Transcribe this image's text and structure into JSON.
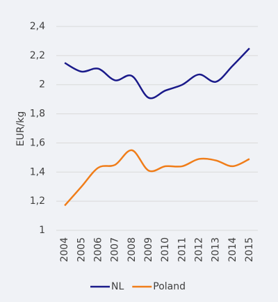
{
  "chart_data": {
    "type": "line",
    "y_label": "EUR/kg",
    "categories": [
      "2004",
      "2005",
      "2006",
      "2007",
      "2008",
      "2009",
      "2010",
      "2011",
      "2012",
      "2013",
      "2014",
      "2015"
    ],
    "series": [
      {
        "name": "NL",
        "color": "#1a1a8a",
        "values": [
          2.15,
          2.09,
          2.11,
          2.03,
          2.06,
          1.91,
          1.96,
          2.0,
          2.07,
          2.02,
          2.13,
          2.25
        ]
      },
      {
        "name": "Poland",
        "color": "#f07d19",
        "values": [
          1.17,
          1.3,
          1.43,
          1.45,
          1.55,
          1.41,
          1.44,
          1.44,
          1.49,
          1.48,
          1.44,
          1.49
        ]
      }
    ],
    "ylim": [
      1,
      2.4
    ],
    "yticks": [
      1,
      {
        "value": 1.2,
        "label": "1,2"
      },
      {
        "value": 1.4,
        "label": "1,4"
      },
      {
        "value": 1.6,
        "label": "1,6"
      },
      {
        "value": 1.8,
        "label": "1,8"
      },
      2,
      {
        "value": 2.2,
        "label": "2,2"
      },
      {
        "value": 2.4,
        "label": "2,4"
      }
    ],
    "grid": true,
    "legend": "bottom",
    "smooth": true
  }
}
